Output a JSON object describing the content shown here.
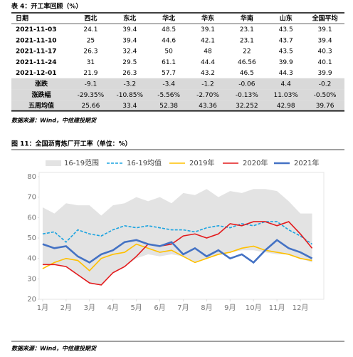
{
  "table": {
    "title": "表 4：开工率回顾（%）",
    "header": [
      "日期",
      "西北",
      "东北",
      "华北",
      "华东",
      "华南",
      "山东",
      "全国平均"
    ],
    "rows": [
      [
        "2021-11-03",
        "24.1",
        "39.4",
        "48.5",
        "39.1",
        "23.1",
        "43.5",
        "39.1"
      ],
      [
        "2021-11-10",
        "25",
        "39.4",
        "44.6",
        "42.1",
        "23.1",
        "43.7",
        "39.4"
      ],
      [
        "2021-11-17",
        "26.3",
        "32.4",
        "50",
        "48",
        "22",
        "43.5",
        "40.3"
      ],
      [
        "2021-11-24",
        "31",
        "29.5",
        "61.1",
        "44.4",
        "46.56",
        "39.9",
        "40.1"
      ],
      [
        "2021-12-01",
        "21.9",
        "26.3",
        "57.7",
        "43.2",
        "46.5",
        "44.3",
        "39.9"
      ],
      [
        "涨跌",
        "-9.1",
        "-3.2",
        "-3.4",
        "-1.2",
        "-0.06",
        "4.4",
        "-0.2"
      ],
      [
        "涨跌幅",
        "-29.35%",
        "-10.85%",
        "-5.56%",
        "-2.70%",
        "-0.13%",
        "11.03%",
        "-0.50%"
      ],
      [
        "五周均值",
        "25.66",
        "33.4",
        "52.38",
        "43.36",
        "32.252",
        "42.98",
        "39.76"
      ]
    ],
    "source": "数据来源：Wind，中信建投期货"
  },
  "chart_data": {
    "type": "line",
    "title": "图 11：全国沥青炼厂开工率（单位：%）",
    "x": [
      1,
      1.5,
      2,
      2.5,
      3,
      3.5,
      4,
      4.5,
      5,
      5.5,
      6,
      6.5,
      7,
      7.5,
      8,
      8.5,
      9,
      9.5,
      10,
      10.5,
      11,
      11.5,
      12,
      12.5
    ],
    "xlim": [
      0.85,
      13
    ],
    "xticks": [
      {
        "value": 1,
        "label": "1月"
      },
      {
        "value": 2,
        "label": "2月"
      },
      {
        "value": 3,
        "label": "3月"
      },
      {
        "value": 4,
        "label": "4月"
      },
      {
        "value": 5,
        "label": "5月"
      },
      {
        "value": 6,
        "label": "6月"
      },
      {
        "value": 7,
        "label": "7月"
      },
      {
        "value": 8,
        "label": "8月"
      },
      {
        "value": 9,
        "label": "9月"
      },
      {
        "value": 10,
        "label": "10月"
      },
      {
        "value": 11,
        "label": "11月"
      },
      {
        "value": 12,
        "label": "12月"
      }
    ],
    "ylim": [
      20,
      80
    ],
    "yticks": [
      20,
      30,
      40,
      50,
      60,
      70,
      80
    ],
    "band": {
      "name": "16-19范围",
      "color": "#e3e3e3",
      "low": [
        37,
        37,
        36,
        32,
        28,
        27,
        33,
        36,
        40,
        42,
        41,
        42,
        41,
        38,
        40,
        42,
        43,
        44,
        44,
        43,
        42,
        42,
        40,
        38
      ],
      "high": [
        65,
        62,
        67,
        66,
        66,
        61,
        66,
        67,
        70,
        68,
        70,
        67,
        72,
        71,
        74,
        70,
        73,
        72,
        74,
        74,
        73,
        68,
        62,
        62
      ]
    },
    "series": [
      {
        "name": "16-19均值",
        "color": "#1aa3e0",
        "dashed": true,
        "values": [
          52,
          53,
          48,
          54,
          52,
          51,
          54,
          56,
          55,
          56,
          55,
          54,
          54,
          53,
          55,
          56,
          55,
          57,
          56,
          58,
          58,
          54,
          51,
          47
        ]
      },
      {
        "name": "2019年",
        "color": "#ffc000",
        "values": [
          35,
          38,
          40,
          39,
          34,
          40,
          42,
          43,
          47,
          45,
          43,
          44,
          41,
          38,
          40,
          42,
          43,
          45,
          46,
          44,
          43,
          42,
          40,
          39
        ]
      },
      {
        "name": "2020年",
        "color": "#e31a1c",
        "values": [
          37,
          37,
          36,
          32,
          28,
          27,
          33,
          36,
          41,
          47,
          46,
          47,
          51,
          52,
          50,
          52,
          57,
          56,
          58,
          58,
          56,
          58,
          52,
          45
        ]
      },
      {
        "name": "2021年",
        "color": "#4472c4",
        "values": [
          47,
          45,
          46,
          41,
          38,
          42,
          44,
          48,
          49,
          47,
          46,
          48,
          42,
          45,
          41,
          44,
          40,
          42,
          38,
          44,
          49,
          45,
          43,
          40
        ]
      }
    ],
    "source": "数据来源：Wind，中信建投期货"
  }
}
